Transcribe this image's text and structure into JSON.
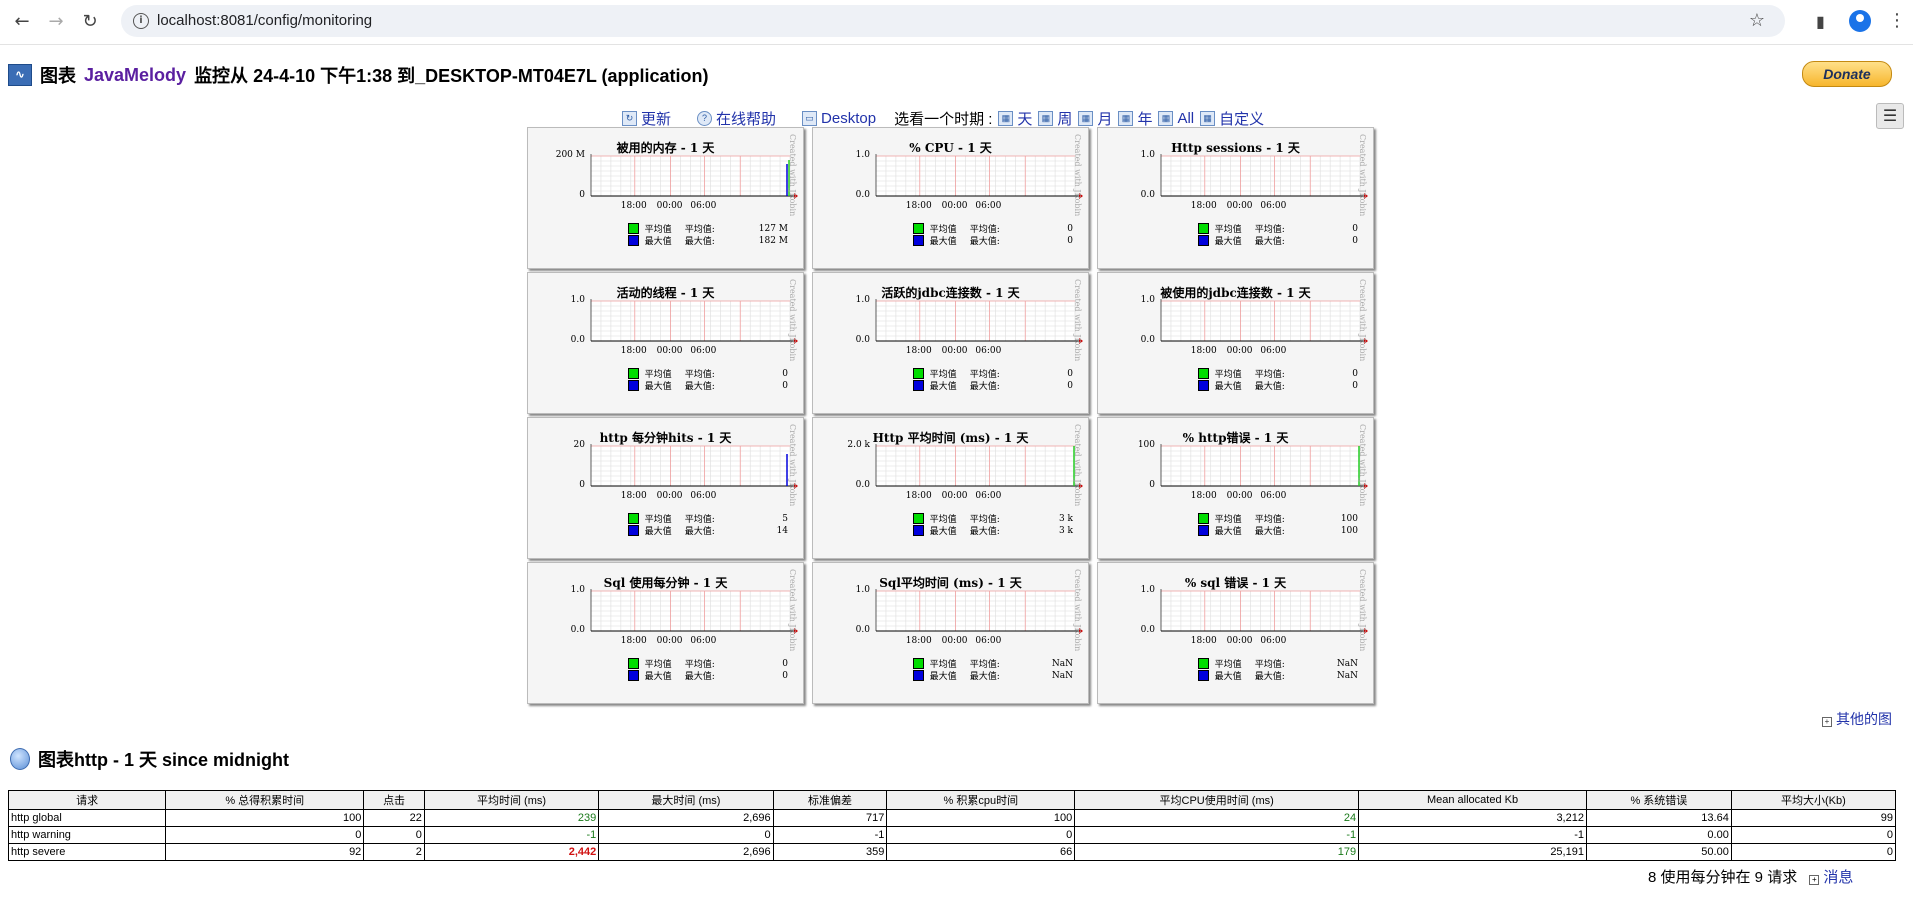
{
  "browser": {
    "url": "localhost:8081/config/monitoring"
  },
  "page": {
    "title_prefix": "图表",
    "title_brand": "JavaMelody",
    "title_rest": "监控从 24-4-10 下午1:38 到_DESKTOP-MT04E7L (application)",
    "donate_label": "Donate"
  },
  "toolbar": {
    "refresh": "更新",
    "help": "在线帮助",
    "desktop": "Desktop",
    "period_label": "选看一个时期 :",
    "periods": [
      "天",
      "周",
      "月",
      "年",
      "All",
      "自定义"
    ]
  },
  "charts": [
    {
      "title": "被用的内存 - 1 天",
      "ymax": "200 M",
      "ymin": "0",
      "avg": "127 M",
      "max": "182 M",
      "spike": 0.9,
      "spike_color": "#22cc22",
      "spike_blue": 0.8
    },
    {
      "title": "% CPU - 1 天",
      "ymax": "1.0",
      "ymin": "0.0",
      "avg": "0",
      "max": "0",
      "spike": 0,
      "spike_blue": 0
    },
    {
      "title": "Http sessions - 1 天",
      "ymax": "1.0",
      "ymin": "0.0",
      "avg": "0",
      "max": "0",
      "spike": 0,
      "spike_blue": 0
    },
    {
      "title": "活动的线程 - 1 天",
      "ymax": "1.0",
      "ymin": "0.0",
      "avg": "0",
      "max": "0",
      "spike": 0,
      "spike_blue": 0
    },
    {
      "title": "活跃的jdbc连接数 - 1 天",
      "ymax": "1.0",
      "ymin": "0.0",
      "avg": "0",
      "max": "0",
      "spike": 0,
      "spike_blue": 0
    },
    {
      "title": "被使用的jdbc连接数 - 1 天",
      "ymax": "1.0",
      "ymin": "0.0",
      "avg": "0",
      "max": "0",
      "spike": 0,
      "spike_blue": 0
    },
    {
      "title": "http 每分钟hits - 1 天",
      "ymax": "20",
      "ymin": "0",
      "avg": "5",
      "max": "14",
      "spike": 0,
      "spike_blue": 0.8
    },
    {
      "title": "Http 平均时间 (ms) - 1 天",
      "ymax": "2.0 k",
      "ymin": "0.0",
      "avg": "3 k",
      "max": "3 k",
      "spike": 1,
      "spike_color": "#22cc22",
      "spike_blue": 0
    },
    {
      "title": "% http错误 - 1 天",
      "ymax": "100",
      "ymin": "0",
      "avg": "100",
      "max": "100",
      "spike": 1,
      "spike_color": "#22cc22",
      "spike_blue": 0
    },
    {
      "title": "Sql 使用每分钟 - 1 天",
      "ymax": "1.0",
      "ymin": "0.0",
      "avg": "0",
      "max": "0",
      "spike": 0,
      "spike_blue": 0
    },
    {
      "title": "Sql平均时间 (ms) - 1 天",
      "ymax": "1.0",
      "ymin": "0.0",
      "avg": "NaN",
      "max": "NaN",
      "spike": 0,
      "spike_blue": 0
    },
    {
      "title": "% sql 错误 - 1 天",
      "ymax": "1.0",
      "ymin": "0.0",
      "avg": "NaN",
      "max": "NaN",
      "spike": 0,
      "spike_blue": 0
    }
  ],
  "chart_common": {
    "xticks": [
      "18:00",
      "00:00",
      "06:00"
    ],
    "legend_avg_name": "平均值",
    "legend_max_name": "最大值",
    "legend_avg_label": "平均值:",
    "legend_max_label": "最大值:",
    "watermark": "Created with JRobin",
    "avg_color": "#00dd00",
    "max_color": "#0000dd"
  },
  "other_charts_link": "其他的图",
  "http_section": {
    "title": "图表http - 1 天 since midnight",
    "columns": [
      "请求",
      "% 总得积累时间",
      "点击",
      "平均时间 (ms)",
      "最大时间 (ms)",
      "标准偏差",
      "% 积累cpu时间",
      "平均CPU使用时间 (ms)",
      "Mean allocated Kb",
      "% 系统错误",
      "平均大小(Kb)"
    ],
    "rows": [
      [
        "http global",
        "100",
        "22",
        "239",
        "2,696",
        "717",
        "100",
        "24",
        "3,212",
        "13.64",
        "99"
      ],
      [
        "http warning",
        "0",
        "0",
        "-1",
        "0",
        "-1",
        "0",
        "-1",
        "-1",
        "0.00",
        "0"
      ],
      [
        "http severe",
        "92",
        "2",
        "2,442",
        "2,696",
        "359",
        "66",
        "179",
        "25,191",
        "50.00",
        "0"
      ]
    ],
    "footer_text": "8 使用每分钟在 9 请求",
    "footer_link": "消息"
  }
}
